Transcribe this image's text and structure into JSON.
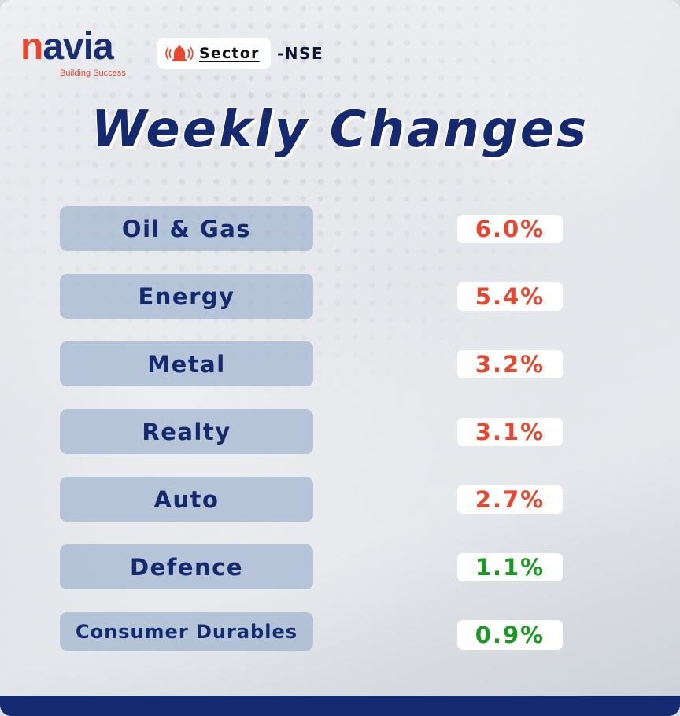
{
  "brand": {
    "name_lead": "n",
    "name_rest": "avia",
    "tagline": "Building Success",
    "primary_color": "#14296e",
    "accent_color": "#e8472e"
  },
  "header": {
    "icon": "alarm-bell-icon",
    "sector_label": "Sector",
    "exchange_label": "-NSE"
  },
  "title": "Weekly Changes",
  "colors": {
    "top_gainer": "#e8472e",
    "low_gainer": "#1a9a22"
  },
  "sectors": [
    {
      "name": "Oil & Gas",
      "change": "6.0%"
    },
    {
      "name": "Energy",
      "change": "5.4%"
    },
    {
      "name": "Metal",
      "change": "3.2%"
    },
    {
      "name": "Realty",
      "change": "3.1%"
    },
    {
      "name": "Auto",
      "change": "2.7%"
    },
    {
      "name": "Defence",
      "change": "1.1%"
    },
    {
      "name": "Consumer Durables",
      "change": "0.9%"
    }
  ]
}
